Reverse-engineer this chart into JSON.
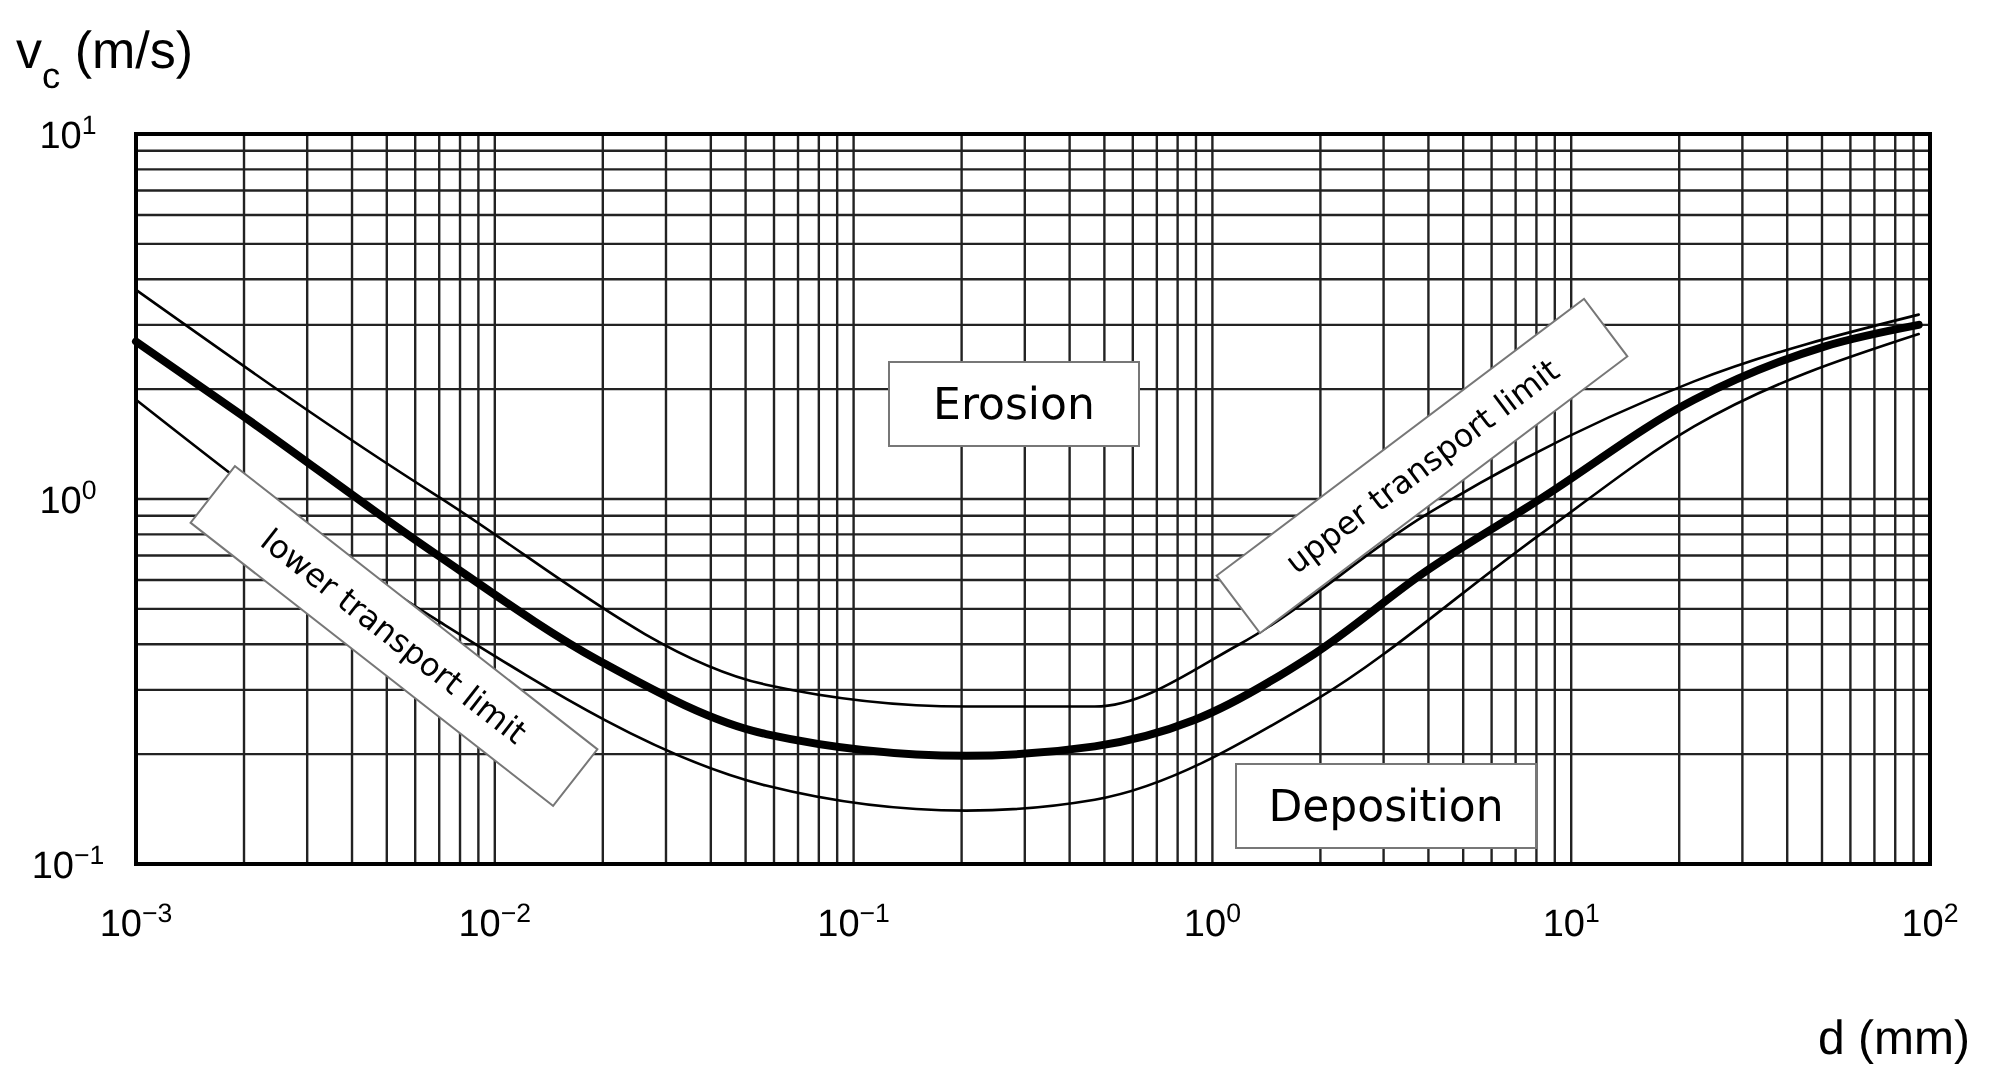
{
  "chart_data": {
    "type": "line",
    "xlabel": "d (mm)",
    "ylabel": "v$_{c}$ (m/s)",
    "log": "xy",
    "grid": true,
    "marker": "none",
    "line_style": "solid",
    "xlim": [
      0.001,
      100
    ],
    "ylim": [
      0.1,
      10
    ],
    "xticks": [
      {
        "value": 0.001,
        "label": "10$^{−3}$"
      },
      {
        "value": 0.01,
        "label": "10$^{−2}$"
      },
      {
        "value": 0.1,
        "label": "10$^{−1}$"
      },
      {
        "value": 1,
        "label": "10$^{0}$"
      },
      {
        "value": 10,
        "label": "10$^{1}$"
      },
      {
        "value": 100,
        "label": "10$^{2}$"
      }
    ],
    "yticks": [
      {
        "value": 0.1,
        "label": "10$^{−1}$"
      },
      {
        "value": 1,
        "label": "10$^{0}$"
      },
      {
        "value": 10,
        "label": "10$^{1}$"
      }
    ],
    "series": [
      {
        "color": "#000000",
        "x": [
          0.001,
          0.00195,
          0.0068,
          0.0196,
          0.057,
          0.206,
          0.47,
          0.89,
          1.92,
          3.9,
          8.2,
          22,
          51,
          93
        ],
        "values": [
          2.7,
          1.71,
          0.71,
          0.36,
          0.227,
          0.198,
          0.21,
          0.248,
          0.376,
          0.63,
          1.0,
          1.87,
          2.62,
          3.0
        ]
      },
      {
        "color": "#000000",
        "x": [
          0.001,
          0.0068,
          0.057,
          0.206,
          0.47,
          1.19,
          3.9,
          22,
          93
        ],
        "values": [
          3.74,
          1.03,
          0.31,
          0.27,
          0.27,
          0.4,
          0.9,
          2.1,
          3.2
        ]
      },
      {
        "color": "#000000",
        "x": [
          0.001,
          0.0068,
          0.057,
          0.206,
          0.47,
          1.92,
          8.2,
          22,
          93
        ],
        "values": [
          1.87,
          0.47,
          0.164,
          0.14,
          0.15,
          0.28,
          0.8,
          1.58,
          2.83
        ]
      }
    ],
    "annotations": [
      "Erosion",
      "Deposition",
      "lower transport limit",
      "upper transport limit"
    ]
  }
}
